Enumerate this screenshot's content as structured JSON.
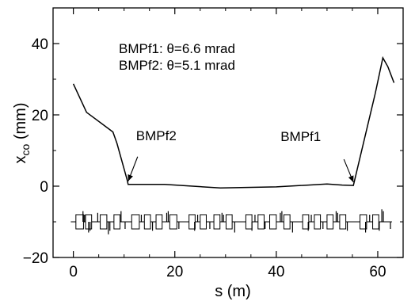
{
  "chart_data": {
    "type": "line",
    "title": "",
    "xlabel": "s (m)",
    "ylabel": {
      "main": "x",
      "sub": "co",
      "unit": " (mm)"
    },
    "xlim": [
      -4,
      65
    ],
    "ylim": [
      -20,
      50
    ],
    "xticks": [
      0,
      20,
      40,
      60
    ],
    "yticks": [
      -20,
      0,
      20,
      40
    ],
    "xtick_labels": [
      "0",
      "20",
      "40",
      "60"
    ],
    "ytick_labels": [
      "−20",
      "0",
      "20",
      "40"
    ],
    "grid": false,
    "legend": "none",
    "annotation_lines": [
      "BMPf1: θ=6.6 mrad",
      "BMPf2: θ=5.1 mrad"
    ],
    "annotations": [
      {
        "text": "BMPf2",
        "x": 10.8,
        "y": 0.5
      },
      {
        "text": "BMPf1",
        "x": 55.2,
        "y": 0.2
      }
    ],
    "series": [
      {
        "x": [
          0,
          2.6,
          7.8,
          8.6,
          10.6,
          10.8,
          18,
          29,
          40,
          50,
          53,
          55.2,
          59.5,
          61,
          62,
          63.2
        ],
        "y": [
          28.7,
          20.7,
          15.2,
          12,
          1.8,
          0.5,
          0.5,
          -0.5,
          -0.2,
          0.6,
          0.3,
          0.2,
          26,
          36,
          33.5,
          29
        ]
      }
    ],
    "lattice": {
      "baseline_y": -10,
      "quads": [
        {
          "s": 0.5,
          "w": 1.5
        },
        {
          "s": 2.4,
          "w": 1.2
        },
        {
          "s": 5.3,
          "w": 1.3
        },
        {
          "s": 8.0,
          "w": 1.2
        },
        {
          "s": 11.5,
          "w": 1.5
        },
        {
          "s": 14.0,
          "w": 1.2
        },
        {
          "s": 16.3,
          "w": 1.2
        },
        {
          "s": 19.0,
          "w": 1.4
        },
        {
          "s": 22.8,
          "w": 1.2
        },
        {
          "s": 25.0,
          "w": 1.2
        },
        {
          "s": 27.7,
          "w": 1.2
        },
        {
          "s": 30.1,
          "w": 1.2
        },
        {
          "s": 34.0,
          "w": 1.2
        },
        {
          "s": 36.4,
          "w": 1.2
        },
        {
          "s": 38.7,
          "w": 1.3
        },
        {
          "s": 41.5,
          "w": 1.2
        },
        {
          "s": 45.2,
          "w": 1.2
        },
        {
          "s": 47.5,
          "w": 1.2
        },
        {
          "s": 50.0,
          "w": 1.2
        },
        {
          "s": 52.5,
          "w": 1.2
        },
        {
          "s": 56.5,
          "w": 1.3
        },
        {
          "s": 59.0,
          "w": 1.2
        }
      ],
      "up_marks": [
        {
          "s": 1.9,
          "h": 3
        },
        {
          "s": 2.2,
          "h": 2
        },
        {
          "s": 4.8,
          "h": 2.5
        },
        {
          "s": 9.4,
          "h": 3
        },
        {
          "s": 13.4,
          "h": 2
        },
        {
          "s": 18.4,
          "h": 2.5
        },
        {
          "s": 18.7,
          "h": 3
        },
        {
          "s": 24.5,
          "h": 2
        },
        {
          "s": 29.3,
          "h": 2.5
        },
        {
          "s": 29.6,
          "h": 2
        },
        {
          "s": 35.8,
          "h": 2
        },
        {
          "s": 40.8,
          "h": 2.5
        },
        {
          "s": 41.1,
          "h": 3
        },
        {
          "s": 46.9,
          "h": 2
        },
        {
          "s": 51.8,
          "h": 3
        },
        {
          "s": 52.1,
          "h": 2.5
        },
        {
          "s": 58.4,
          "h": 2
        },
        {
          "s": 60.8,
          "h": 3.5
        },
        {
          "s": 61.1,
          "h": 3
        }
      ],
      "down_marks": [
        {
          "s": 3.0,
          "h": 3
        },
        {
          "s": 3.3,
          "h": 2.5
        },
        {
          "s": 6.9,
          "h": 3.5
        },
        {
          "s": 7.2,
          "h": 2.5
        },
        {
          "s": 10.2,
          "h": 2
        },
        {
          "s": 15.6,
          "h": 2.5
        },
        {
          "s": 20.8,
          "h": 2
        },
        {
          "s": 23.9,
          "h": 2.5
        },
        {
          "s": 26.9,
          "h": 2
        },
        {
          "s": 31.8,
          "h": 3
        },
        {
          "s": 35.2,
          "h": 2.5
        },
        {
          "s": 37.8,
          "h": 2
        },
        {
          "s": 43.2,
          "h": 3
        },
        {
          "s": 46.3,
          "h": 2.5
        },
        {
          "s": 49.2,
          "h": 2
        },
        {
          "s": 54.0,
          "h": 2.5
        },
        {
          "s": 57.6,
          "h": 3
        },
        {
          "s": 60.3,
          "h": 2.5
        },
        {
          "s": 62.5,
          "h": 2
        }
      ]
    }
  }
}
